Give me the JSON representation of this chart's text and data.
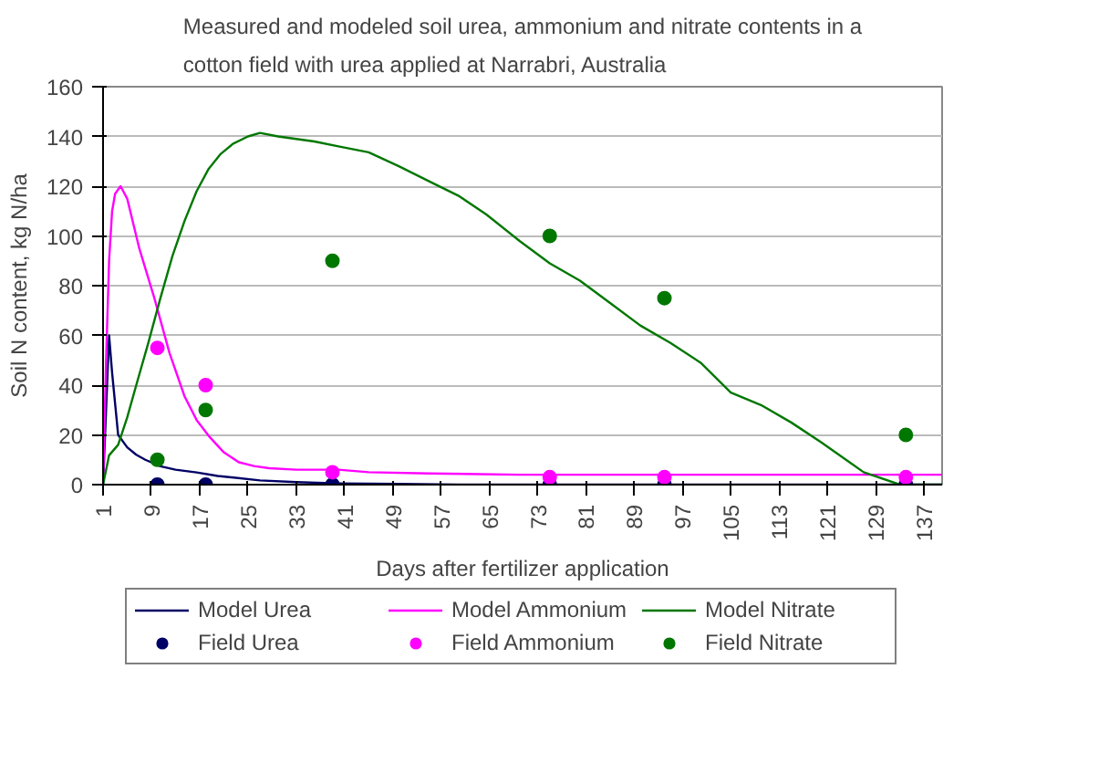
{
  "chart_data": {
    "type": "line",
    "title": "Measured and modeled soil urea, ammonium and nitrate contents in a\ncotton field with urea applied at Narrabri, Australia",
    "xlabel": "Days after fertilizer application",
    "ylabel": "Soil N content, kg N/ha",
    "xlim": [
      1,
      140
    ],
    "xticks": [
      1,
      9,
      17,
      25,
      33,
      41,
      49,
      57,
      65,
      73,
      81,
      89,
      97,
      105,
      113,
      121,
      129,
      137
    ],
    "ylim": [
      0,
      160
    ],
    "yticks": [
      0,
      20,
      40,
      60,
      80,
      100,
      120,
      140,
      160
    ],
    "grid": "y",
    "legend": "bottom",
    "marker": "none",
    "line_style": "solid",
    "series": [
      {
        "name": "Model Urea",
        "color": "#000066",
        "x": [
          1,
          2,
          2.5,
          3.5,
          5,
          6.5,
          8,
          10.5,
          13,
          16.5,
          20,
          27,
          33,
          40,
          50,
          60,
          80,
          100,
          120,
          140
        ],
        "values": [
          0,
          60,
          45,
          20,
          15,
          12,
          10,
          7.4,
          6,
          4.9,
          3.5,
          1.7,
          1,
          0.5,
          0.3,
          0,
          0,
          0,
          0,
          0
        ]
      },
      {
        "name": "Model Ammonium",
        "color": "#ff00ff",
        "x": [
          1,
          1.5,
          2,
          2.5,
          3,
          3.9,
          5,
          7,
          9.5,
          12,
          14.5,
          16.5,
          18.5,
          21,
          23.5,
          26,
          28.5,
          33,
          40,
          45,
          55,
          70,
          90,
          110,
          130,
          140
        ],
        "values": [
          0,
          50,
          90,
          110,
          117,
          120,
          115,
          95,
          75,
          53,
          35.5,
          26,
          19.6,
          13,
          9,
          7.5,
          6.6,
          6,
          6,
          5,
          4.5,
          4,
          4,
          4,
          4,
          4
        ]
      },
      {
        "name": "Model Nitrate",
        "color": "#007700",
        "x": [
          1,
          2,
          3.5,
          5,
          6.5,
          8.5,
          10.5,
          12.5,
          14.5,
          16.5,
          18.5,
          20.5,
          22.5,
          25,
          27,
          30,
          33,
          36,
          40,
          45,
          50,
          56,
          60,
          64.5,
          70,
          75,
          80,
          85,
          90,
          95,
          100,
          105,
          110,
          115,
          120,
          127,
          133,
          140
        ],
        "values": [
          0,
          11.8,
          16,
          27,
          40,
          57,
          75,
          92,
          106,
          118,
          127,
          133,
          137,
          140,
          141.4,
          140,
          139,
          138,
          136,
          133.6,
          128,
          120.8,
          116,
          108.6,
          98,
          89,
          82,
          73,
          64,
          57,
          49,
          37,
          32,
          25,
          17,
          5,
          0,
          0
        ]
      },
      {
        "name": "Field Urea",
        "type": "scatter",
        "marker": "circle",
        "color": "#000066",
        "x": [
          10,
          18,
          39,
          75,
          94,
          134
        ],
        "values": [
          0,
          0,
          0,
          0,
          0,
          0
        ]
      },
      {
        "name": "Field Ammonium",
        "type": "scatter",
        "marker": "circle",
        "color": "#ff00ff",
        "x": [
          10,
          18,
          39,
          75,
          94,
          134
        ],
        "values": [
          55,
          40,
          5,
          3,
          3,
          3
        ]
      },
      {
        "name": "Field Nitrate",
        "type": "scatter",
        "marker": "circle",
        "color": "#007700",
        "x": [
          10,
          18,
          39,
          75,
          94,
          134
        ],
        "values": [
          10,
          30,
          90,
          100,
          75,
          20
        ]
      }
    ]
  }
}
